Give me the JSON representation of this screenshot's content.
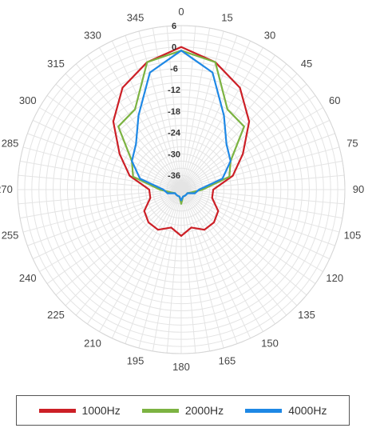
{
  "chart_data": {
    "type": "polar-line",
    "title": "",
    "angle_unit": "degrees",
    "angle_direction": "clockwise",
    "angle_zero": "top",
    "angle_ticks": [
      0,
      15,
      30,
      45,
      60,
      75,
      90,
      105,
      120,
      135,
      150,
      165,
      180,
      195,
      210,
      225,
      240,
      255,
      270,
      285,
      300,
      315,
      330,
      345
    ],
    "radial_ticks": [
      6,
      0,
      -6,
      -12,
      -18,
      -24,
      -30,
      -36
    ],
    "radial_range": [
      -40,
      6
    ],
    "grid": true,
    "legend_position": "bottom",
    "angles": [
      0,
      15,
      30,
      45,
      60,
      75,
      90,
      105,
      120,
      135,
      150,
      165,
      180,
      195,
      210,
      225,
      240,
      255,
      270,
      285,
      300,
      315,
      330,
      345
    ],
    "series": [
      {
        "name": "1000Hz",
        "color": "#cc1f26",
        "values": [
          0,
          -3,
          -7,
          -13,
          -20,
          -25,
          -31,
          -31,
          -28,
          -27,
          -27,
          -29,
          -27,
          -29,
          -27,
          -27,
          -28,
          -31,
          -31,
          -25,
          -20,
          -13,
          -7,
          -3
        ]
      },
      {
        "name": "2000Hz",
        "color": "#7cb342",
        "values": [
          -1,
          -3,
          -14,
          -15,
          -24,
          -26,
          -34,
          -37,
          -38,
          -38,
          -38,
          -38,
          -36,
          -38,
          -38,
          -38,
          -38,
          -37,
          -34,
          -26,
          -24,
          -15,
          -14,
          -3
        ]
      },
      {
        "name": "4000Hz",
        "color": "#1e88e5",
        "values": [
          -1,
          -6,
          -16,
          -22,
          -24,
          -28,
          -35,
          -36,
          -38,
          -38,
          -38,
          -38,
          -37,
          -38,
          -38,
          -38,
          -38,
          -36,
          -35,
          -28,
          -24,
          -22,
          -16,
          -6
        ]
      }
    ]
  }
}
